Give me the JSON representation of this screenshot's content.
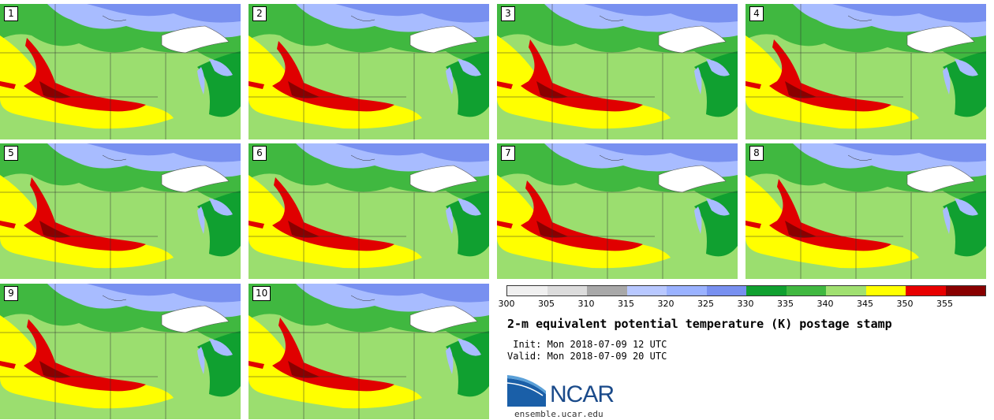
{
  "stamps": [
    {
      "label": "1"
    },
    {
      "label": "2"
    },
    {
      "label": "3"
    },
    {
      "label": "4"
    },
    {
      "label": "5"
    },
    {
      "label": "6"
    },
    {
      "label": "7"
    },
    {
      "label": "8"
    },
    {
      "label": "9"
    },
    {
      "label": "10"
    }
  ],
  "colorbar": {
    "ticks": [
      "300",
      "305",
      "310",
      "315",
      "320",
      "325",
      "330",
      "335",
      "340",
      "345",
      "350",
      "355"
    ],
    "colors": [
      "#f0f0f0",
      "#dcdcdc",
      "#a8a8a8",
      "#b8c8ff",
      "#9ab2ff",
      "#7890f0",
      "#10a030",
      "#40b840",
      "#a0e070",
      "#ffff00",
      "#e80000",
      "#880000"
    ]
  },
  "map_colors": {
    "cool": "#a8bcff",
    "cold": "#7890f0",
    "green_dark": "#10a030",
    "green_mid": "#40b840",
    "green_light": "#9bde6f",
    "yellow": "#ffff00",
    "red": "#e00000",
    "dark_red": "#8a0000",
    "lake": "#ffffff"
  },
  "info": {
    "title": "2-m equivalent potential temperature (K) postage stamp",
    "init": " Init: Mon 2018-07-09 12 UTC",
    "valid": "Valid: Mon 2018-07-09 20 UTC"
  },
  "logo": {
    "text": "NCAR",
    "website": "ensemble.ucar.edu"
  }
}
